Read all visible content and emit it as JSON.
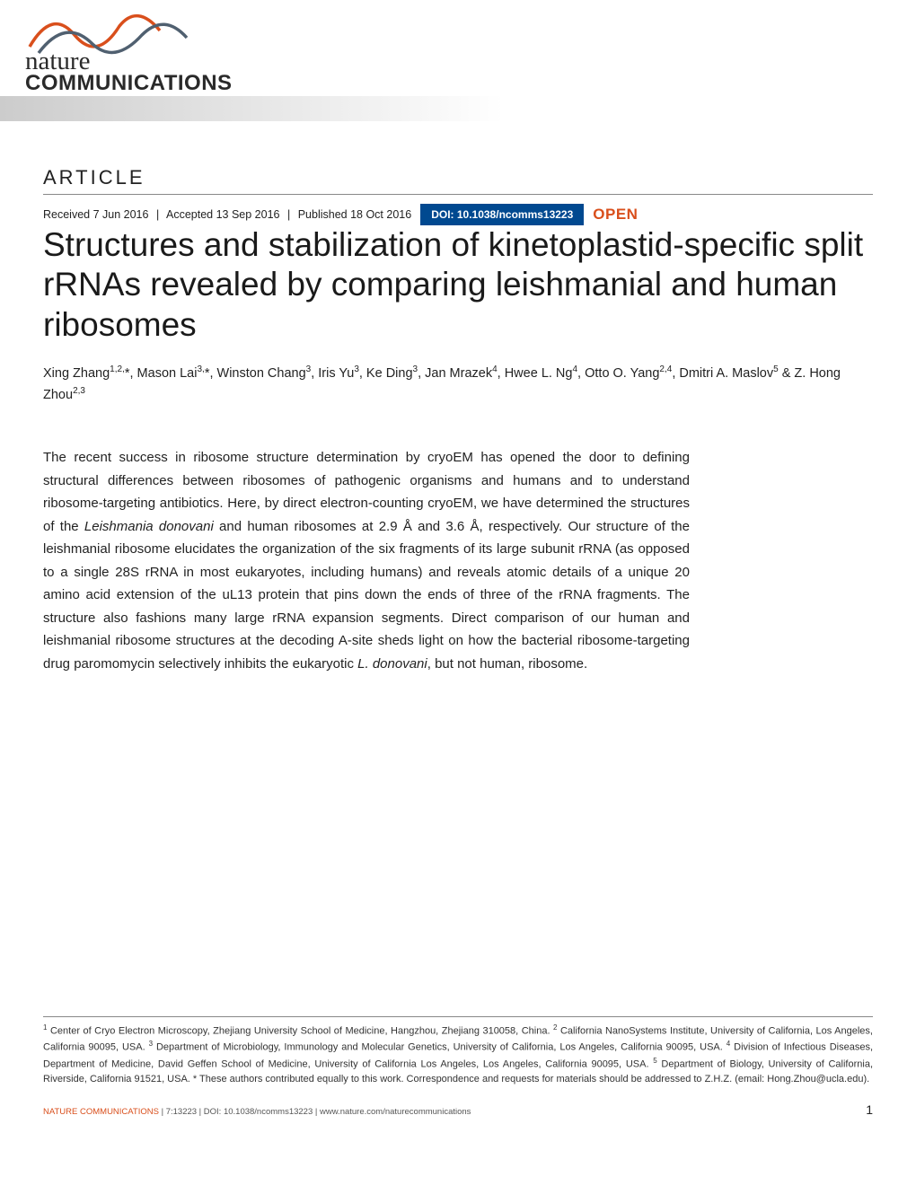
{
  "journal": {
    "logo_line1": "nature",
    "logo_line2": "COMMUNICATIONS",
    "wave_color_top": "#d94f1c",
    "wave_color_bottom": "#506070",
    "gradient_from": "#cccccc",
    "gradient_to": "#ffffff"
  },
  "article": {
    "label": "ARTICLE",
    "received": "Received 7 Jun 2016",
    "accepted": "Accepted 13 Sep 2016",
    "published": "Published 18 Oct 2016",
    "doi": "DOI: 10.1038/ncomms13223",
    "open_label": "OPEN",
    "title": "Structures and stabilization of kinetoplastid-specific split rRNAs revealed by comparing leishmanial and human ribosomes"
  },
  "authors_html": "Xing Zhang<sup>1,2,</sup>*, Mason Lai<sup>3,</sup>*, Winston Chang<sup>3</sup>, Iris Yu<sup>3</sup>, Ke Ding<sup>3</sup>, Jan Mrazek<sup>4</sup>, Hwee L. Ng<sup>4</sup>, Otto O. Yang<sup>2,4</sup>, Dmitri A. Maslov<sup>5</sup> &amp; Z. Hong Zhou<sup>2,3</sup>",
  "abstract_html": "The recent success in ribosome structure determination by cryoEM has opened the door to defining structural differences between ribosomes of pathogenic organisms and humans and to understand ribosome-targeting antibiotics. Here, by direct electron-counting cryoEM, we have determined the structures of the <em>Leishmania donovani</em> and human ribosomes at 2.9 Å and 3.6 Å, respectively. Our structure of the leishmanial ribosome elucidates the organization of the six fragments of its large subunit rRNA (as opposed to a single 28S rRNA in most eukaryotes, including humans) and reveals atomic details of a unique 20 amino acid extension of the uL13 protein that pins down the ends of three of the rRNA fragments. The structure also fashions many large rRNA expansion segments. Direct comparison of our human and leishmanial ribosome structures at the decoding A-site sheds light on how the bacterial ribosome-targeting drug paromomycin selectively inhibits the eukaryotic <em>L. donovani</em>, but not human, ribosome.",
  "affiliations_html": "<sup>1</sup> Center of Cryo Electron Microscopy, Zhejiang University School of Medicine, Hangzhou, Zhejiang 310058, China. <sup>2</sup> California NanoSystems Institute, University of California, Los Angeles, California 90095, USA. <sup>3</sup> Department of Microbiology, Immunology and Molecular Genetics, University of California, Los Angeles, California 90095, USA. <sup>4</sup> Division of Infectious Diseases, Department of Medicine, David Geffen School of Medicine, University of California Los Angeles, Los Angeles, California 90095, USA. <sup>5</sup> Department of Biology, University of California, Riverside, California 91521, USA. * These authors contributed equally to this work. Correspondence and requests for materials should be addressed to Z.H.Z. (email: Hong.Zhou@ucla.edu).",
  "footer": {
    "journal_name": "NATURE COMMUNICATIONS",
    "citation": " | 7:13223 | DOI: 10.1038/ncomms13223 | www.nature.com/naturecommunications",
    "page_number": "1"
  },
  "colors": {
    "doi_bg": "#004990",
    "open_color": "#d94f1c",
    "text": "#222222"
  }
}
